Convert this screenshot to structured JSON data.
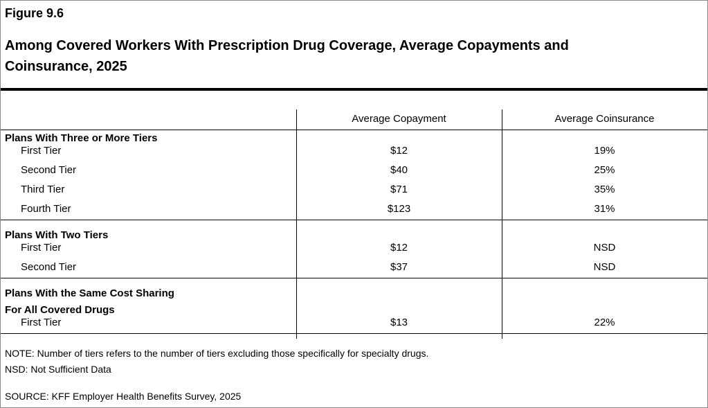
{
  "header": {
    "figure": "Figure 9.6",
    "title": "Among Covered Workers With Prescription Drug Coverage, Average Copayments and Coinsurance, 2025"
  },
  "table": {
    "columns": [
      "Average Copayment",
      "Average Coinsurance"
    ],
    "groups": [
      {
        "label": [
          "Plans With Three or More Tiers"
        ],
        "rows": [
          [
            "First Tier",
            "$12",
            "19%"
          ],
          [
            "Second Tier",
            "$40",
            "25%"
          ],
          [
            "Third Tier",
            "$71",
            "35%"
          ],
          [
            "Fourth Tier",
            "$123",
            "31%"
          ]
        ]
      },
      {
        "label": [
          "Plans With Two Tiers"
        ],
        "rows": [
          [
            "First Tier",
            "$12",
            "NSD"
          ],
          [
            "Second Tier",
            "$37",
            "NSD"
          ]
        ]
      },
      {
        "label": [
          "Plans With the Same Cost Sharing",
          "For All Covered Drugs"
        ],
        "rows": [
          [
            "First Tier",
            "$13",
            "22%"
          ]
        ]
      }
    ]
  },
  "notes": [
    "NOTE: Number of tiers refers to the number of tiers excluding those specifically for specialty drugs.",
    "NSD: Not Sufficient Data"
  ],
  "source": "SOURCE: KFF Employer Health Benefits Survey, 2025"
}
